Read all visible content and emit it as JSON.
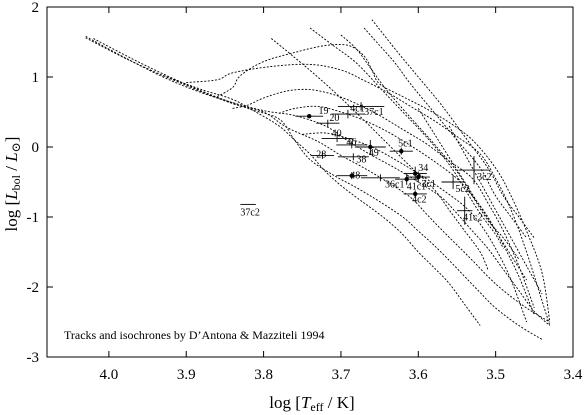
{
  "chart_data": {
    "type": "scatter",
    "title": "",
    "annotation": "Tracks and isochrones by D’Antona & Mazziteli 1994",
    "xlabel": {
      "pre": "log [",
      "var": "T",
      "sub": "eff",
      "post": " / K]"
    },
    "ylabel": {
      "pre": "log [",
      "var": "L",
      "sub": "bol",
      "mid": " / ",
      "var2": "L",
      "sub2": "⊙",
      "post": "]"
    },
    "xlim": [
      4.08,
      3.4
    ],
    "ylim": [
      -3,
      2
    ],
    "x_reversed": true,
    "xticks": [
      {
        "value": 4.0,
        "label": "4.0"
      },
      {
        "value": 3.9,
        "label": "3.9"
      },
      {
        "value": 3.8,
        "label": "3.8"
      },
      {
        "value": 3.7,
        "label": "3.7"
      },
      {
        "value": 3.6,
        "label": "3.6"
      },
      {
        "value": 3.5,
        "label": "3.5"
      },
      {
        "value": 3.4,
        "label": "3.4"
      }
    ],
    "yticks": [
      {
        "value": 2,
        "label": "2"
      },
      {
        "value": 1,
        "label": "1"
      },
      {
        "value": 0,
        "label": "0"
      },
      {
        "value": -1,
        "label": "-1"
      },
      {
        "value": -2,
        "label": "-2"
      },
      {
        "value": -3,
        "label": "-3"
      }
    ],
    "grid": false,
    "stars": [
      {
        "label": "19",
        "x": 3.741,
        "y": 0.44,
        "dx": 0.018,
        "dy": 0.0,
        "filled": true,
        "label_dx": -0.012,
        "label_dy": 0.03
      },
      {
        "label": "20",
        "x": 3.717,
        "y": 0.34,
        "dx": 0.015,
        "dy": 0.05,
        "filled": false,
        "label_dx": -0.002,
        "label_dy": 0.03
      },
      {
        "label": "4c1",
        "x": 3.691,
        "y": 0.47,
        "dx": 0.022,
        "dy": 0.06,
        "filled": false,
        "label_dx": -0.003,
        "label_dy": 0.04
      },
      {
        "label": "37c1",
        "x": 3.674,
        "y": 0.58,
        "dx": 0.03,
        "dy": 0.06,
        "filled": false,
        "label_dx": -0.004,
        "label_dy": -0.12
      },
      {
        "label": "40",
        "x": 3.705,
        "y": 0.12,
        "dx": 0.02,
        "dy": 0.05,
        "filled": false,
        "label_dx": 0.007,
        "label_dy": 0.03
      },
      {
        "label": "46",
        "x": 3.686,
        "y": 0.03,
        "dx": 0.02,
        "dy": 0.05,
        "filled": false,
        "label_dx": 0.007,
        "label_dy": 0.0
      },
      {
        "label": "49",
        "x": 3.662,
        "y": 0.0,
        "dx": 0.02,
        "dy": 0.1,
        "filled": true,
        "label_dx": 0.002,
        "label_dy": -0.13
      },
      {
        "label": "5c1",
        "x": 3.622,
        "y": -0.06,
        "dx": 0.015,
        "dy": 0.05,
        "filled": true,
        "label_dx": 0.004,
        "label_dy": 0.07
      },
      {
        "label": "38",
        "x": 3.684,
        "y": -0.14,
        "dx": 0.02,
        "dy": 0.05,
        "filled": false,
        "label_dx": -0.004,
        "label_dy": -0.08
      },
      {
        "label": "28",
        "x": 3.724,
        "y": -0.12,
        "dx": 0.015,
        "dy": 0.05,
        "filled": false,
        "label_dx": 0.008,
        "label_dy": -0.03
      },
      {
        "label": "48",
        "x": 3.686,
        "y": -0.41,
        "dx": 0.02,
        "dy": 0.05,
        "filled": true,
        "label_dx": 0.002,
        "label_dy": -0.04
      },
      {
        "label": "36c1",
        "x": 3.649,
        "y": -0.44,
        "dx": 0.025,
        "dy": 0.05,
        "filled": false,
        "label_dx": -0.006,
        "label_dy": -0.14
      },
      {
        "label": "41c1",
        "x": 3.615,
        "y": -0.46,
        "dx": 0.015,
        "dy": 0.08,
        "filled": true,
        "label_dx": 0.0,
        "label_dy": -0.15
      },
      {
        "label": "3c1",
        "x": 3.6,
        "y": -0.43,
        "dx": 0.015,
        "dy": 0.08,
        "filled": true,
        "label_dx": -0.004,
        "label_dy": -0.14
      },
      {
        "label": "34",
        "x": 3.604,
        "y": -0.38,
        "dx": 0.015,
        "dy": 0.1,
        "filled": true,
        "label_dx": -0.004,
        "label_dy": 0.04
      },
      {
        "label": "4c2",
        "x": 3.604,
        "y": -0.67,
        "dx": 0.015,
        "dy": 0.05,
        "filled": true,
        "label_dx": 0.004,
        "label_dy": -0.12
      },
      {
        "label": "5c2",
        "x": 3.555,
        "y": -0.5,
        "dx": 0.015,
        "dy": 0.1,
        "filled": false,
        "label_dx": -0.003,
        "label_dy": -0.14
      },
      {
        "label": "3c2",
        "x": 3.528,
        "y": -0.33,
        "dx": 0.02,
        "dy": 0.2,
        "filled": false,
        "label_dx": -0.004,
        "label_dy": -0.14
      },
      {
        "label": "41c2",
        "x": 3.54,
        "y": -0.91,
        "dx": 0.01,
        "dy": 0.2,
        "filled": false,
        "label_dx": 0.002,
        "label_dy": -0.14
      },
      {
        "label": "37c2",
        "x": 3.82,
        "y": -0.82,
        "dx": 0.01,
        "dy": 0.0,
        "filled": false,
        "label_dx": 0.01,
        "label_dy": -0.16
      }
    ],
    "tracks": [
      [
        [
          4.03,
          1.58
        ],
        [
          3.98,
          1.28
        ],
        [
          3.92,
          0.95
        ],
        [
          3.86,
          0.7
        ],
        [
          3.8,
          0.52
        ],
        [
          3.76,
          0.45
        ],
        [
          3.72,
          0.3
        ],
        [
          3.69,
          0.08
        ],
        [
          3.66,
          -0.12
        ],
        [
          3.63,
          -0.3
        ],
        [
          3.6,
          -0.5
        ],
        [
          3.57,
          -0.72
        ],
        [
          3.55,
          -0.95
        ],
        [
          3.53,
          -1.2
        ],
        [
          3.51,
          -1.45
        ],
        [
          3.49,
          -1.75
        ],
        [
          3.47,
          -2.05
        ],
        [
          3.45,
          -2.35
        ],
        [
          3.43,
          -2.55
        ]
      ],
      [
        [
          4.03,
          1.56
        ],
        [
          3.97,
          1.22
        ],
        [
          3.9,
          0.88
        ],
        [
          3.84,
          0.62
        ],
        [
          3.8,
          0.5
        ],
        [
          3.77,
          0.28
        ],
        [
          3.73,
          0.08
        ],
        [
          3.7,
          -0.12
        ],
        [
          3.67,
          -0.3
        ],
        [
          3.64,
          -0.5
        ],
        [
          3.61,
          -0.72
        ],
        [
          3.59,
          -0.95
        ],
        [
          3.57,
          -1.18
        ],
        [
          3.55,
          -1.4
        ],
        [
          3.53,
          -1.62
        ],
        [
          3.51,
          -1.85
        ],
        [
          3.49,
          -2.05
        ],
        [
          3.46,
          -2.3
        ],
        [
          3.43,
          -2.5
        ]
      ],
      [
        [
          4.02,
          1.55
        ],
        [
          3.95,
          1.15
        ],
        [
          3.88,
          0.8
        ],
        [
          3.82,
          0.55
        ],
        [
          3.78,
          0.4
        ],
        [
          3.76,
          0.1
        ],
        [
          3.74,
          -0.18
        ],
        [
          3.71,
          -0.4
        ],
        [
          3.68,
          -0.58
        ],
        [
          3.65,
          -0.78
        ],
        [
          3.62,
          -1.0
        ],
        [
          3.6,
          -1.2
        ],
        [
          3.58,
          -1.4
        ],
        [
          3.56,
          -1.62
        ],
        [
          3.54,
          -1.85
        ],
        [
          3.52,
          -2.08
        ],
        [
          3.5,
          -2.3
        ],
        [
          3.47,
          -2.55
        ],
        [
          3.44,
          -2.75
        ]
      ],
      [
        [
          3.93,
          1.02
        ],
        [
          3.88,
          0.82
        ],
        [
          3.84,
          0.68
        ],
        [
          3.81,
          0.5
        ],
        [
          3.78,
          0.3
        ],
        [
          3.76,
          0.1
        ],
        [
          3.74,
          -0.1
        ],
        [
          3.72,
          -0.35
        ],
        [
          3.7,
          -0.55
        ],
        [
          3.68,
          -0.72
        ],
        [
          3.66,
          -0.88
        ],
        [
          3.64,
          -1.05
        ],
        [
          3.62,
          -1.25
        ],
        [
          3.6,
          -1.5
        ],
        [
          3.58,
          -1.72
        ],
        [
          3.56,
          -1.95
        ],
        [
          3.54,
          -2.25
        ],
        [
          3.52,
          -2.55
        ]
      ],
      [
        [
          3.86,
          0.72
        ],
        [
          3.84,
          0.85
        ],
        [
          3.83,
          1.02
        ],
        [
          3.8,
          1.22
        ],
        [
          3.76,
          1.35
        ],
        [
          3.72,
          1.45
        ],
        [
          3.69,
          1.45
        ],
        [
          3.67,
          1.3
        ],
        [
          3.66,
          1.1
        ],
        [
          3.65,
          0.9
        ],
        [
          3.62,
          0.72
        ],
        [
          3.59,
          0.55
        ],
        [
          3.56,
          0.35
        ],
        [
          3.53,
          0.1
        ],
        [
          3.5,
          -0.3
        ],
        [
          3.48,
          -0.7
        ],
        [
          3.46,
          -1.2
        ],
        [
          3.44,
          -1.8
        ],
        [
          3.43,
          -2.5
        ]
      ],
      [
        [
          3.9,
          0.92
        ],
        [
          3.86,
          0.96
        ],
        [
          3.84,
          1.06
        ],
        [
          3.79,
          1.15
        ],
        [
          3.74,
          1.18
        ],
        [
          3.7,
          1.1
        ],
        [
          3.67,
          0.95
        ],
        [
          3.64,
          0.78
        ],
        [
          3.61,
          0.58
        ],
        [
          3.58,
          0.38
        ],
        [
          3.55,
          0.15
        ],
        [
          3.52,
          -0.1
        ],
        [
          3.5,
          -0.45
        ],
        [
          3.48,
          -0.9
        ],
        [
          3.46,
          -1.5
        ],
        [
          3.44,
          -2.2
        ],
        [
          3.43,
          -2.55
        ]
      ],
      [
        [
          3.84,
          0.55
        ],
        [
          3.82,
          0.6
        ],
        [
          3.8,
          0.7
        ],
        [
          3.77,
          0.8
        ],
        [
          3.74,
          0.82
        ],
        [
          3.71,
          0.75
        ],
        [
          3.68,
          0.62
        ],
        [
          3.65,
          0.45
        ],
        [
          3.62,
          0.25
        ],
        [
          3.59,
          0.05
        ],
        [
          3.56,
          -0.2
        ],
        [
          3.53,
          -0.45
        ],
        [
          3.51,
          -0.8
        ],
        [
          3.49,
          -1.2
        ],
        [
          3.47,
          -1.7
        ],
        [
          3.45,
          -2.3
        ]
      ],
      [
        [
          3.78,
          0.48
        ],
        [
          3.76,
          0.55
        ],
        [
          3.73,
          0.58
        ],
        [
          3.7,
          0.5
        ],
        [
          3.67,
          0.38
        ],
        [
          3.64,
          0.22
        ],
        [
          3.61,
          0.02
        ],
        [
          3.58,
          -0.2
        ],
        [
          3.55,
          -0.45
        ],
        [
          3.53,
          -0.7
        ],
        [
          3.51,
          -1.0
        ],
        [
          3.49,
          -1.4
        ],
        [
          3.47,
          -1.85
        ],
        [
          3.45,
          -2.4
        ]
      ],
      [
        [
          3.75,
          0.18
        ],
        [
          3.72,
          0.2
        ],
        [
          3.69,
          0.12
        ],
        [
          3.66,
          0.0
        ],
        [
          3.63,
          -0.18
        ],
        [
          3.6,
          -0.38
        ],
        [
          3.57,
          -0.6
        ],
        [
          3.54,
          -0.85
        ],
        [
          3.52,
          -1.1
        ],
        [
          3.5,
          -1.45
        ],
        [
          3.48,
          -1.9
        ],
        [
          3.46,
          -2.5
        ]
      ],
      [
        [
          3.79,
          1.55
        ],
        [
          3.76,
          1.28
        ],
        [
          3.73,
          1.0
        ],
        [
          3.7,
          0.7
        ],
        [
          3.67,
          0.38
        ],
        [
          3.64,
          0.05
        ],
        [
          3.61,
          -0.28
        ],
        [
          3.58,
          -0.6
        ],
        [
          3.56,
          -0.9
        ],
        [
          3.54,
          -1.2
        ],
        [
          3.52,
          -1.5
        ],
        [
          3.51,
          -1.75
        ]
      ],
      [
        [
          3.74,
          1.7
        ],
        [
          3.71,
          1.45
        ],
        [
          3.68,
          1.2
        ],
        [
          3.65,
          0.85
        ],
        [
          3.62,
          0.5
        ],
        [
          3.59,
          0.15
        ],
        [
          3.56,
          -0.25
        ],
        [
          3.54,
          -0.6
        ],
        [
          3.52,
          -0.95
        ],
        [
          3.5,
          -1.25
        ],
        [
          3.49,
          -1.45
        ]
      ],
      [
        [
          3.7,
          1.6
        ],
        [
          3.68,
          1.4
        ],
        [
          3.66,
          1.1
        ],
        [
          3.64,
          0.8
        ],
        [
          3.61,
          0.42
        ],
        [
          3.58,
          0.05
        ],
        [
          3.55,
          -0.35
        ],
        [
          3.53,
          -0.7
        ],
        [
          3.51,
          -1.05
        ],
        [
          3.49,
          -1.3
        ],
        [
          3.47,
          -1.6
        ]
      ],
      [
        [
          3.67,
          1.7
        ],
        [
          3.65,
          1.45
        ],
        [
          3.63,
          1.2
        ],
        [
          3.61,
          0.9
        ],
        [
          3.58,
          0.5
        ],
        [
          3.55,
          0.1
        ],
        [
          3.52,
          -0.3
        ],
        [
          3.5,
          -0.7
        ],
        [
          3.48,
          -1.0
        ],
        [
          3.46,
          -1.3
        ]
      ],
      [
        [
          3.66,
          1.82
        ],
        [
          3.63,
          1.4
        ],
        [
          3.6,
          1.0
        ],
        [
          3.57,
          0.6
        ],
        [
          3.54,
          0.15
        ],
        [
          3.51,
          -0.3
        ],
        [
          3.49,
          -0.7
        ],
        [
          3.47,
          -1.0
        ],
        [
          3.45,
          -1.3
        ]
      ],
      [
        [
          3.6,
          0.55
        ],
        [
          3.58,
          0.2
        ],
        [
          3.56,
          -0.15
        ],
        [
          3.54,
          -0.5
        ],
        [
          3.52,
          -0.85
        ],
        [
          3.5,
          -1.2
        ],
        [
          3.48,
          -1.55
        ],
        [
          3.46,
          -1.9
        ]
      ],
      [
        [
          3.56,
          0.3
        ],
        [
          3.54,
          -0.1
        ],
        [
          3.52,
          -0.5
        ],
        [
          3.5,
          -0.9
        ],
        [
          3.48,
          -1.3
        ],
        [
          3.46,
          -1.7
        ],
        [
          3.44,
          -2.1
        ]
      ]
    ]
  }
}
